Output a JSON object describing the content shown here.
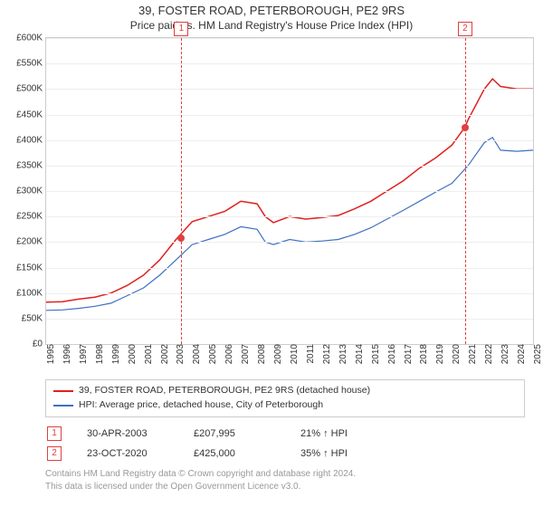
{
  "title1": "39, FOSTER ROAD, PETERBOROUGH, PE2 9RS",
  "title2": "Price paid vs. HM Land Registry's House Price Index (HPI)",
  "chart": {
    "type": "line",
    "background_color": "#ffffff",
    "grid_color": "#eeeeee",
    "border_color": "#cccccc",
    "yaxis": {
      "min": 0,
      "max": 600,
      "step": 50,
      "labels": [
        "£0",
        "£50K",
        "£100K",
        "£150K",
        "£200K",
        "£250K",
        "£300K",
        "£350K",
        "£400K",
        "£450K",
        "£500K",
        "£550K",
        "£600K"
      ],
      "fontsize": 10
    },
    "xaxis": {
      "min": 1995,
      "max": 2025,
      "labels": [
        "1995",
        "1996",
        "1997",
        "1998",
        "1999",
        "2000",
        "2001",
        "2002",
        "2003",
        "2004",
        "2005",
        "2006",
        "2007",
        "2008",
        "2009",
        "2010",
        "2011",
        "2012",
        "2013",
        "2014",
        "2015",
        "2016",
        "2017",
        "2018",
        "2019",
        "2020",
        "2021",
        "2022",
        "2023",
        "2024",
        "2025"
      ],
      "fontsize": 10
    },
    "series": [
      {
        "name": "39, FOSTER ROAD, PETERBOROUGH, PE2 9RS (detached house)",
        "color": "#e02020",
        "line_width": 1.5,
        "data": [
          [
            1995,
            82
          ],
          [
            1996,
            83
          ],
          [
            1997,
            88
          ],
          [
            1998,
            92
          ],
          [
            1999,
            100
          ],
          [
            2000,
            115
          ],
          [
            2001,
            135
          ],
          [
            2002,
            165
          ],
          [
            2003,
            205
          ],
          [
            2004,
            240
          ],
          [
            2005,
            250
          ],
          [
            2006,
            260
          ],
          [
            2007,
            280
          ],
          [
            2008,
            275
          ],
          [
            2008.5,
            250
          ],
          [
            2009,
            238
          ],
          [
            2010,
            250
          ],
          [
            2011,
            245
          ],
          [
            2012,
            248
          ],
          [
            2013,
            252
          ],
          [
            2014,
            265
          ],
          [
            2015,
            280
          ],
          [
            2016,
            300
          ],
          [
            2017,
            320
          ],
          [
            2018,
            345
          ],
          [
            2019,
            365
          ],
          [
            2020,
            390
          ],
          [
            2020.8,
            425
          ],
          [
            2021,
            440
          ],
          [
            2022,
            500
          ],
          [
            2022.5,
            520
          ],
          [
            2023,
            505
          ],
          [
            2024,
            500
          ],
          [
            2025,
            500
          ]
        ]
      },
      {
        "name": "HPI: Average price, detached house, City of Peterborough",
        "color": "#4070c0",
        "line_width": 1.2,
        "data": [
          [
            1995,
            66
          ],
          [
            1996,
            67
          ],
          [
            1997,
            70
          ],
          [
            1998,
            74
          ],
          [
            1999,
            80
          ],
          [
            2000,
            95
          ],
          [
            2001,
            110
          ],
          [
            2002,
            135
          ],
          [
            2003,
            165
          ],
          [
            2004,
            195
          ],
          [
            2005,
            205
          ],
          [
            2006,
            215
          ],
          [
            2007,
            230
          ],
          [
            2008,
            225
          ],
          [
            2008.5,
            200
          ],
          [
            2009,
            195
          ],
          [
            2010,
            205
          ],
          [
            2011,
            200
          ],
          [
            2012,
            202
          ],
          [
            2013,
            205
          ],
          [
            2014,
            215
          ],
          [
            2015,
            228
          ],
          [
            2016,
            245
          ],
          [
            2017,
            262
          ],
          [
            2018,
            280
          ],
          [
            2019,
            298
          ],
          [
            2020,
            315
          ],
          [
            2021,
            350
          ],
          [
            2022,
            395
          ],
          [
            2022.5,
            405
          ],
          [
            2023,
            380
          ],
          [
            2024,
            378
          ],
          [
            2025,
            380
          ]
        ]
      }
    ],
    "markers": [
      {
        "id": "1",
        "x": 2003.33,
        "y": 207.995,
        "color": "#e04040"
      },
      {
        "id": "2",
        "x": 2020.81,
        "y": 425.0,
        "color": "#e04040"
      }
    ]
  },
  "legend": {
    "border_color": "#cccccc",
    "items": [
      {
        "color": "#e02020",
        "label": "39, FOSTER ROAD, PETERBOROUGH, PE2 9RS (detached house)"
      },
      {
        "color": "#4070c0",
        "label": "HPI: Average price, detached house, City of Peterborough"
      }
    ]
  },
  "price_rows": [
    {
      "marker": "1",
      "date": "30-APR-2003",
      "price": "£207,995",
      "pct": "21% ↑ HPI"
    },
    {
      "marker": "2",
      "date": "23-OCT-2020",
      "price": "£425,000",
      "pct": "35% ↑ HPI"
    }
  ],
  "footer": {
    "line1": "Contains HM Land Registry data © Crown copyright and database right 2024.",
    "line2": "This data is licensed under the Open Government Licence v3.0.",
    "color": "#999999"
  }
}
